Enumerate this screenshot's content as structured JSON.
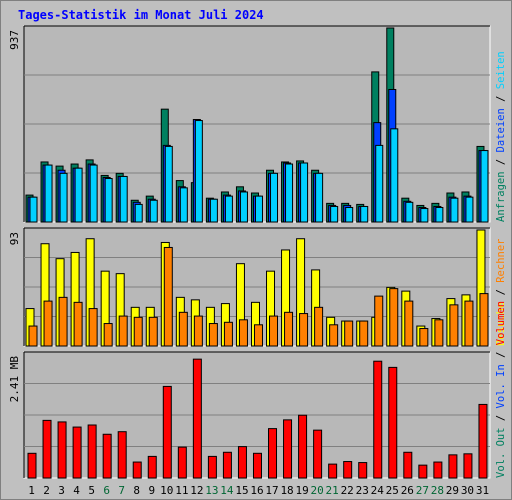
{
  "title": "Tages-Statistik im Monat Juli 2024",
  "colors": {
    "background": "#c0c0c0",
    "title": "#0000ff",
    "panel": "#b8b8b8",
    "grid": "#808080",
    "weekday_label": "#000000",
    "weekend_label": "#006633",
    "anfragen": "#008060",
    "dateien": "#0040ff",
    "seiten": "#00d0ff",
    "besuche": "#ffff00",
    "rechner": "#ff8000",
    "vol_in": "#0040ff",
    "vol_out": "#008060",
    "volumen": "#ff0000"
  },
  "right_labels": {
    "top": [
      {
        "text": "Anfragen",
        "color_key": "anfragen"
      },
      {
        "text": "Dateien",
        "color_key": "dateien"
      },
      {
        "text": "Seiten",
        "color_key": "seiten"
      }
    ],
    "middle": [
      {
        "text": "Besuche",
        "color_key": "besuche"
      },
      {
        "text": "Rechner",
        "color_key": "rechner"
      }
    ],
    "bottom": [
      {
        "text": "Vol. Out",
        "color_key": "vol_out"
      },
      {
        "text": "Vol. In",
        "color_key": "vol_in"
      },
      {
        "text": "Volumen",
        "color_key": "volumen"
      }
    ],
    "separator": " / "
  },
  "chart_data": [
    {
      "type": "bar",
      "panel": "top",
      "ymax_label": "937",
      "ylim": [
        0,
        937
      ],
      "categories": [
        "1",
        "2",
        "3",
        "4",
        "5",
        "6",
        "7",
        "8",
        "9",
        "10",
        "11",
        "12",
        "13",
        "14",
        "15",
        "16",
        "17",
        "18",
        "19",
        "20",
        "21",
        "22",
        "23",
        "24",
        "25",
        "26",
        "27",
        "28",
        "29",
        "30",
        "31"
      ],
      "weekend_days": [
        "6",
        "7",
        "13",
        "14",
        "20",
        "21",
        "27",
        "28"
      ],
      "series": [
        {
          "name": "Anfragen",
          "values": [
            130,
            290,
            270,
            280,
            300,
            225,
            235,
            105,
            125,
            545,
            200,
            190,
            115,
            145,
            170,
            140,
            250,
            290,
            295,
            250,
            90,
            90,
            85,
            725,
            937,
            115,
            80,
            90,
            140,
            145,
            365
          ]
        },
        {
          "name": "Dateien",
          "values": [
            120,
            275,
            250,
            260,
            280,
            215,
            220,
            95,
            110,
            370,
            170,
            495,
            110,
            130,
            150,
            125,
            235,
            285,
            285,
            235,
            80,
            80,
            75,
            480,
            640,
            100,
            70,
            75,
            120,
            125,
            345
          ]
        },
        {
          "name": "Seiten",
          "values": [
            120,
            275,
            235,
            260,
            275,
            210,
            220,
            85,
            105,
            365,
            165,
            490,
            110,
            125,
            145,
            125,
            235,
            280,
            285,
            235,
            75,
            70,
            75,
            370,
            450,
            95,
            65,
            70,
            115,
            120,
            345
          ]
        }
      ]
    },
    {
      "type": "bar",
      "panel": "middle",
      "ymax_label": "93",
      "ylim": [
        0,
        93
      ],
      "categories": [
        "1",
        "2",
        "3",
        "4",
        "5",
        "6",
        "7",
        "8",
        "9",
        "10",
        "11",
        "12",
        "13",
        "14",
        "15",
        "16",
        "17",
        "18",
        "19",
        "20",
        "21",
        "22",
        "23",
        "24",
        "25",
        "26",
        "27",
        "28",
        "29",
        "30",
        "31"
      ],
      "series": [
        {
          "name": "Besuche",
          "values": [
            30,
            82,
            70,
            75,
            86,
            60,
            58,
            31,
            31,
            83,
            39,
            37,
            31,
            34,
            66,
            35,
            60,
            77,
            86,
            61,
            23,
            20,
            20,
            23,
            47,
            44,
            16,
            22,
            38,
            41,
            93
          ]
        },
        {
          "name": "Rechner",
          "values": [
            16,
            36,
            39,
            35,
            30,
            18,
            24,
            23,
            23,
            79,
            27,
            24,
            18,
            19,
            21,
            17,
            24,
            27,
            26,
            31,
            17,
            20,
            20,
            40,
            46,
            36,
            14,
            21,
            33,
            36,
            42
          ]
        }
      ]
    },
    {
      "type": "bar",
      "panel": "bottom",
      "ymax_label": "2.41 MB",
      "ylim": [
        0,
        2.41
      ],
      "categories": [
        "1",
        "2",
        "3",
        "4",
        "5",
        "6",
        "7",
        "8",
        "9",
        "10",
        "11",
        "12",
        "13",
        "14",
        "15",
        "16",
        "17",
        "18",
        "19",
        "20",
        "21",
        "22",
        "23",
        "24",
        "25",
        "26",
        "27",
        "28",
        "29",
        "30",
        "31"
      ],
      "series": [
        {
          "name": "Volumen",
          "values": [
            0.48,
            1.12,
            1.09,
            0.99,
            1.03,
            0.85,
            0.9,
            0.31,
            0.42,
            1.78,
            0.6,
            2.31,
            0.42,
            0.5,
            0.61,
            0.48,
            0.96,
            1.13,
            1.22,
            0.93,
            0.27,
            0.32,
            0.3,
            2.27,
            2.15,
            0.5,
            0.25,
            0.31,
            0.45,
            0.47,
            1.43
          ]
        }
      ]
    }
  ]
}
